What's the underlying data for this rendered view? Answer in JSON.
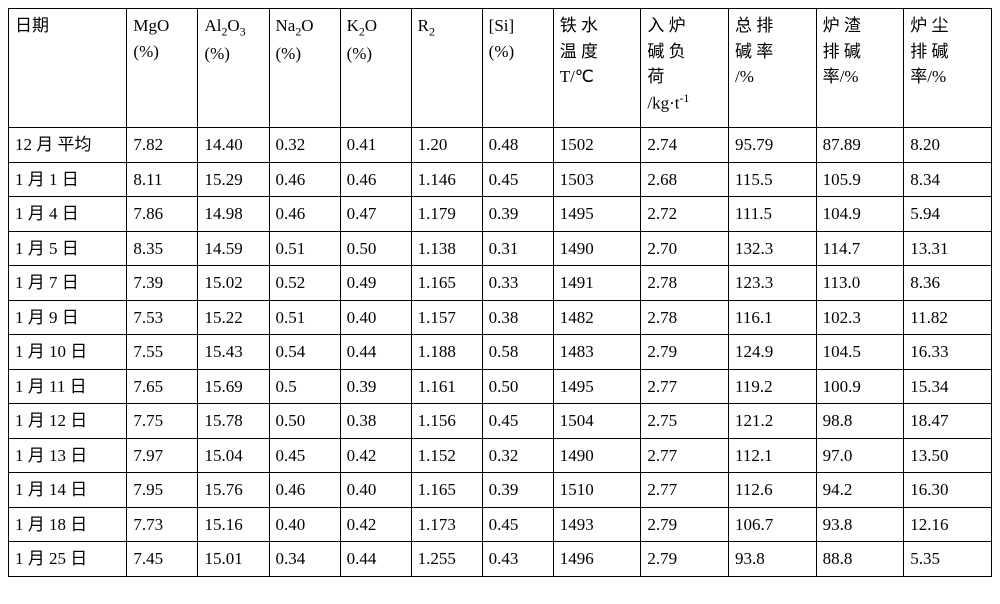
{
  "table": {
    "columns": [
      {
        "key": "date",
        "label": "日期"
      },
      {
        "key": "mgo",
        "label": "MgO<br>(%)"
      },
      {
        "key": "al2o3",
        "label": "Al<sub>2</sub>O<sub>3</sub><br>(%)"
      },
      {
        "key": "na2o",
        "label": "Na<sub>2</sub>O<br>(%)"
      },
      {
        "key": "k2o",
        "label": "K<sub>2</sub>O<br>(%)"
      },
      {
        "key": "r2",
        "label": "R<sub>2</sub>"
      },
      {
        "key": "si",
        "label": "[Si]<br>(%)"
      },
      {
        "key": "temp",
        "label": "铁 水<br>温 度<br>T/℃"
      },
      {
        "key": "load",
        "label": "入 炉<br>碱 负<br>荷<br>/kg·t<sup>-1</sup>"
      },
      {
        "key": "total",
        "label": "总 排<br>碱 率<br>/%"
      },
      {
        "key": "slag",
        "label": "炉 渣<br>排 碱<br>率/%"
      },
      {
        "key": "dust",
        "label": "炉 尘<br>排 碱<br>率/%"
      }
    ],
    "col_widths_class": [
      "col-date",
      "col-num",
      "col-num",
      "col-num",
      "col-num",
      "col-num",
      "col-num",
      "col-wide",
      "col-wide",
      "col-wide",
      "col-wide",
      "col-wide"
    ],
    "rows": [
      [
        "12 月 平均",
        "7.82",
        "14.40",
        "0.32",
        "0.41",
        "1.20",
        "0.48",
        "1502",
        "2.74",
        "95.79",
        "87.89",
        "8.20"
      ],
      [
        "1 月 1 日",
        "8.11",
        "15.29",
        "0.46",
        "0.46",
        "1.146",
        "0.45",
        "1503",
        "2.68",
        "115.5",
        "105.9",
        "8.34"
      ],
      [
        "1 月 4 日",
        "7.86",
        "14.98",
        "0.46",
        "0.47",
        "1.179",
        "0.39",
        "1495",
        "2.72",
        "111.5",
        "104.9",
        "5.94"
      ],
      [
        "1 月 5 日",
        "8.35",
        "14.59",
        "0.51",
        "0.50",
        "1.138",
        "0.31",
        "1490",
        "2.70",
        "132.3",
        "114.7",
        "13.31"
      ],
      [
        "1 月 7 日",
        "7.39",
        "15.02",
        "0.52",
        "0.49",
        "1.165",
        "0.33",
        "1491",
        "2.78",
        "123.3",
        "113.0",
        "8.36"
      ],
      [
        "1 月 9 日",
        "7.53",
        "15.22",
        "0.51",
        "0.40",
        "1.157",
        "0.38",
        "1482",
        "2.78",
        "116.1",
        "102.3",
        "11.82"
      ],
      [
        "1 月 10 日",
        "7.55",
        "15.43",
        "0.54",
        "0.44",
        "1.188",
        "0.58",
        "1483",
        "2.79",
        "124.9",
        "104.5",
        "16.33"
      ],
      [
        "1 月 11 日",
        "7.65",
        "15.69",
        "0.5",
        "0.39",
        "1.161",
        "0.50",
        "1495",
        "2.77",
        "119.2",
        "100.9",
        "15.34"
      ],
      [
        "1 月 12 日",
        "7.75",
        "15.78",
        "0.50",
        "0.38",
        "1.156",
        "0.45",
        "1504",
        "2.75",
        "121.2",
        "98.8",
        "18.47"
      ],
      [
        "1 月 13 日",
        "7.97",
        "15.04",
        "0.45",
        "0.42",
        "1.152",
        "0.32",
        "1490",
        "2.77",
        "112.1",
        "97.0",
        "13.50"
      ],
      [
        "1 月 14 日",
        "7.95",
        "15.76",
        "0.46",
        "0.40",
        "1.165",
        "0.39",
        "1510",
        "2.77",
        "112.6",
        "94.2",
        "16.30"
      ],
      [
        "1 月 18 日",
        "7.73",
        "15.16",
        "0.40",
        "0.42",
        "1.173",
        "0.45",
        "1493",
        "2.79",
        "106.7",
        "93.8",
        "12.16"
      ],
      [
        "1 月 25 日",
        "7.45",
        "15.01",
        "0.34",
        "0.44",
        "1.255",
        "0.43",
        "1496",
        "2.79",
        "93.8",
        "88.8",
        "5.35"
      ]
    ],
    "border_color": "#000000",
    "background": "#ffffff",
    "font_size_pt": 13,
    "font_family": "SimSun serif"
  }
}
